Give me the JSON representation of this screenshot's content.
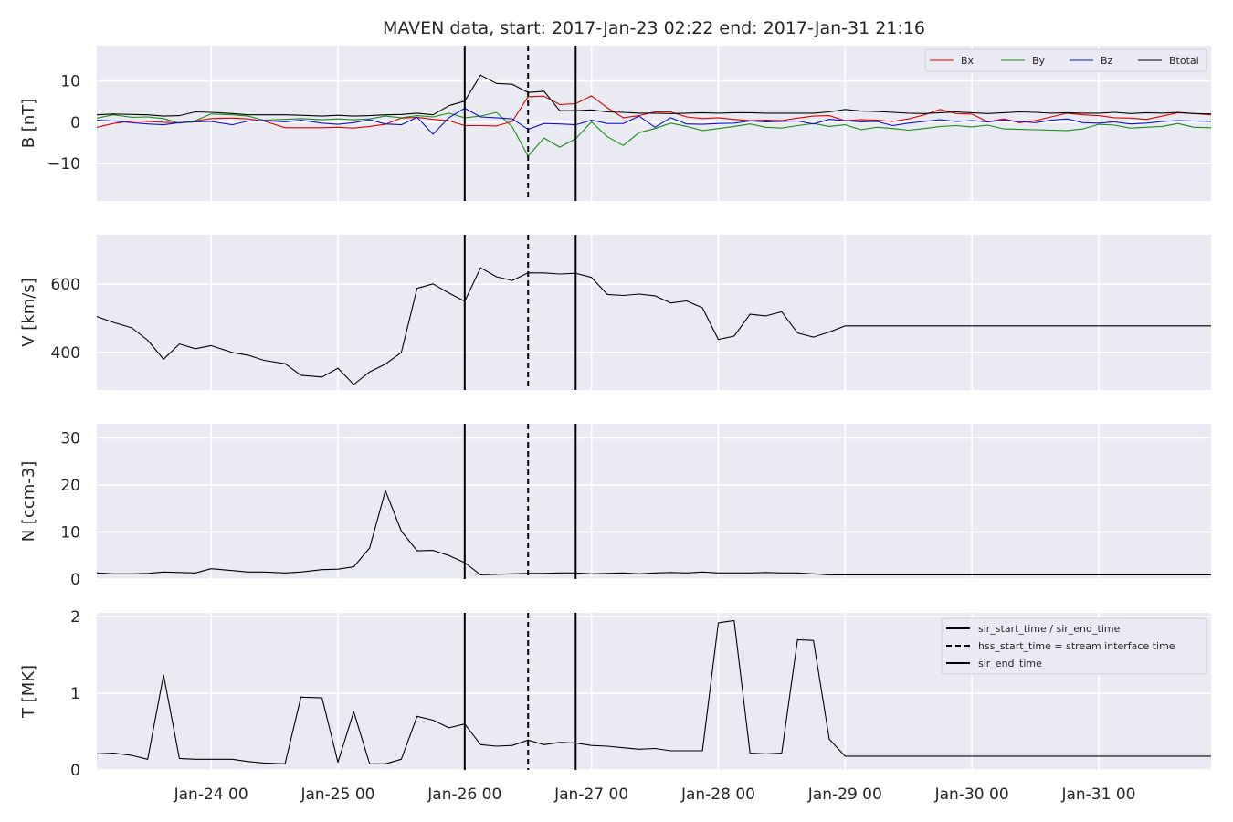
{
  "figure": {
    "title": "MAVEN data, start: 2017-Jan-23 02:22  end: 2017-Jan-31 21:16",
    "x_tick_labels": [
      "Jan-24 00",
      "Jan-25 00",
      "Jan-26 00",
      "Jan-27 00",
      "Jan-28 00",
      "Jan-29 00",
      "Jan-30 00",
      "Jan-31 00"
    ],
    "x_tick_dates": [
      "2017-01-24 00:00",
      "2017-01-25 00:00",
      "2017-01-26 00:00",
      "2017-01-27 00:00",
      "2017-01-28 00:00",
      "2017-01-29 00:00",
      "2017-01-30 00:00",
      "2017-01-31 00:00"
    ],
    "xlim": [
      "2017-01-23 02:22",
      "2017-01-31 21:16"
    ],
    "background": "#eaeaf2",
    "grid_color": "#ffffff"
  },
  "chart_data": {
    "type": "line",
    "x": [
      "2017-01-23 02:22",
      "2017-01-23 05:30",
      "2017-01-23 09:00",
      "2017-01-23 12:00",
      "2017-01-23 15:00",
      "2017-01-23 18:00",
      "2017-01-23 21:00",
      "2017-01-24 00:00",
      "2017-01-24 04:00",
      "2017-01-24 07:00",
      "2017-01-24 10:00",
      "2017-01-24 14:00",
      "2017-01-24 17:00",
      "2017-01-24 21:00",
      "2017-01-25 00:00",
      "2017-01-25 03:00",
      "2017-01-25 06:00",
      "2017-01-25 09:00",
      "2017-01-25 12:00",
      "2017-01-25 15:00",
      "2017-01-25 18:00",
      "2017-01-25 21:00",
      "2017-01-26 00:00",
      "2017-01-26 03:00",
      "2017-01-26 06:00",
      "2017-01-26 09:00",
      "2017-01-26 12:00",
      "2017-01-26 15:00",
      "2017-01-26 18:00",
      "2017-01-26 21:00",
      "2017-01-27 00:00",
      "2017-01-27 03:00",
      "2017-01-27 06:00",
      "2017-01-27 09:00",
      "2017-01-27 12:00",
      "2017-01-27 15:00",
      "2017-01-27 18:00",
      "2017-01-27 21:00",
      "2017-01-28 00:00",
      "2017-01-28 03:00",
      "2017-01-28 06:00",
      "2017-01-28 09:00",
      "2017-01-28 12:00",
      "2017-01-28 15:00",
      "2017-01-28 18:00",
      "2017-01-28 21:00",
      "2017-01-29 00:00",
      "2017-01-29 03:00",
      "2017-01-29 06:00",
      "2017-01-29 09:00",
      "2017-01-29 12:00",
      "2017-01-29 15:00",
      "2017-01-29 18:00",
      "2017-01-29 21:00",
      "2017-01-30 00:00",
      "2017-01-30 03:00",
      "2017-01-30 06:00",
      "2017-01-30 09:00",
      "2017-01-30 12:00",
      "2017-01-30 15:00",
      "2017-01-30 18:00",
      "2017-01-30 21:00",
      "2017-01-31 00:00",
      "2017-01-31 03:00",
      "2017-01-31 06:00",
      "2017-01-31 09:00",
      "2017-01-31 12:00",
      "2017-01-31 15:00",
      "2017-01-31 18:00",
      "2017-01-31 21:16"
    ],
    "panels": [
      {
        "ylabel": "B [nT]",
        "ylim": [
          -19,
          18.5
        ],
        "yticks": [
          -10,
          0,
          10
        ],
        "ytick_labels": [
          "−10",
          "0",
          "10"
        ],
        "legend_position": "top-right",
        "series": [
          {
            "name": "Bx",
            "color": "#e00000",
            "values": [
              -1.2,
              -0.3,
              0.3,
              0.2,
              0,
              -0.1,
              0.3,
              0.9,
              1,
              0.8,
              0.3,
              -1.3,
              -1.3,
              -1.3,
              -1.2,
              -1.4,
              -1,
              -0.5,
              1,
              1.2,
              0.7,
              0.4,
              -0.8,
              -0.8,
              -0.9,
              0.2,
              6.2,
              6.3,
              4.3,
              4.5,
              6.4,
              3.5,
              1.1,
              1.6,
              2.5,
              2.5,
              1.3,
              0.9,
              1.1,
              0.7,
              0.4,
              0.5,
              0.4,
              1,
              1.5,
              1.6,
              0.4,
              0.6,
              0.5,
              0.2,
              0.8,
              1.8,
              3.1,
              2.1,
              2,
              0.1,
              0.8,
              -0.1,
              0.4,
              1.3,
              2.2,
              1.8,
              1.6,
              1.1,
              1,
              0.7,
              1.5,
              2.3,
              2.1,
              1.8
            ]
          },
          {
            "name": "By",
            "color": "#1a8c1a",
            "values": [
              1,
              1.8,
              1.2,
              1.3,
              0.9,
              -0.2,
              0.4,
              2,
              1.8,
              1.5,
              0.5,
              0.7,
              0.9,
              0.6,
              0.8,
              0.6,
              0.8,
              1.5,
              1.1,
              1.6,
              1.3,
              2.2,
              1.1,
              1.5,
              2.4,
              -1.1,
              -8.2,
              -3.8,
              -6,
              -4,
              0.1,
              -3.5,
              -5.6,
              -2.5,
              -1.5,
              -0.2,
              -1,
              -2,
              -1.5,
              -1,
              -0.4,
              -1.2,
              -1.4,
              -0.8,
              -0.3,
              -1,
              -0.6,
              -1.8,
              -1.2,
              -1.5,
              -1.9,
              -1.5,
              -1,
              -0.8,
              -1.1,
              -0.7,
              -1.6,
              -1.7,
              -1.8,
              -1.9,
              -2,
              -1.6,
              -0.5,
              -0.7,
              -1.4,
              -1.2,
              -1,
              -0.3,
              -1.2,
              -1.3
            ]
          },
          {
            "name": "Bz",
            "color": "#1010d0",
            "values": [
              0.5,
              0.3,
              -0.1,
              -0.4,
              -0.6,
              -0.1,
              0.1,
              0.2,
              -0.6,
              0.3,
              0.4,
              0.1,
              0.5,
              -0.2,
              -0.5,
              -0.1,
              0.6,
              -0.4,
              -0.6,
              1.2,
              -2.9,
              1.1,
              3.4,
              1.3,
              1.1,
              0.8,
              -1.7,
              -0.3,
              -0.4,
              -0.6,
              0.5,
              -0.3,
              -0.3,
              1.5,
              -1.2,
              1.1,
              -0.4,
              -0.5,
              -0.3,
              -0.2,
              0.3,
              0.1,
              0.2,
              0.3,
              -0.4,
              0.7,
              0.4,
              0.1,
              0.2,
              -0.8,
              -0.2,
              0.2,
              0.6,
              0.2,
              0.4,
              0.1,
              0.5,
              0.2,
              -0.1,
              0.5,
              0.8,
              -0.1,
              -0.2,
              0.1,
              -0.4,
              -0.2,
              0.2,
              0.4,
              0.3,
              0.2
            ]
          },
          {
            "name": "Btotal",
            "color": "#000000",
            "values": [
              1.8,
              2,
              1.9,
              1.8,
              1.5,
              1.6,
              2.5,
              2.4,
              2.1,
              1.8,
              1.8,
              1.8,
              1.7,
              1.5,
              1.7,
              1.5,
              1.6,
              1.8,
              1.9,
              2.2,
              1.8,
              4,
              5.1,
              11.4,
              9.4,
              9.2,
              7.2,
              7.5,
              2.8,
              2.8,
              3,
              2.5,
              2.4,
              2.2,
              2.2,
              2.1,
              2.2,
              2.3,
              2.2,
              2.3,
              2.3,
              2.2,
              2.2,
              2.2,
              2.2,
              2.5,
              3.1,
              2.7,
              2.6,
              2.4,
              2.2,
              2.1,
              2.3,
              2.5,
              2.3,
              2.1,
              2.3,
              2.5,
              2.4,
              2.2,
              2.3,
              2.2,
              2.2,
              2.4,
              2.1,
              2.3,
              2.2,
              2.4,
              2.1,
              2
            ]
          }
        ]
      },
      {
        "ylabel": "V [km/s]",
        "ylim": [
          290,
          745
        ],
        "yticks": [
          400,
          600
        ],
        "ytick_labels": [
          "400",
          "600"
        ],
        "series": [
          {
            "name": "",
            "color": "#000000",
            "values": [
              505,
              488,
              472,
              436,
              380,
              425,
              411,
              420,
              400,
              392,
              377,
              367,
              333,
              328,
              354,
              306,
              343,
              366,
              400,
              588,
              601,
              574,
              550,
              648,
              622,
              611,
              633,
              633,
              630,
              632,
              620,
              570,
              567,
              571,
              566,
              545,
              551,
              531,
              438,
              448,
              512,
              507,
              519,
              457,
              445,
              460,
              478,
              478,
              478,
              478,
              478,
              478,
              478,
              478,
              478,
              478,
              478,
              478,
              478,
              478,
              478,
              478,
              478,
              478,
              478,
              478,
              478,
              478,
              478,
              478
            ]
          }
        ]
      },
      {
        "ylabel": "N [ccm-3]",
        "ylim": [
          0,
          33
        ],
        "yticks": [
          0,
          10,
          20,
          30
        ],
        "ytick_labels": [
          "0",
          "10",
          "20",
          "30"
        ],
        "series": [
          {
            "name": "",
            "color": "#000000",
            "values": [
              1.3,
              1.1,
              1.1,
              1.2,
              1.5,
              1.4,
              1.3,
              2.2,
              1.8,
              1.5,
              1.5,
              1.3,
              1.5,
              2,
              2.1,
              2.6,
              6.6,
              18.8,
              10.2,
              6,
              6.1,
              5,
              3.5,
              0.9,
              1,
              1.1,
              1.2,
              1.2,
              1.3,
              1.3,
              1.1,
              1.2,
              1.3,
              1.1,
              1.3,
              1.4,
              1.3,
              1.5,
              1.3,
              1.3,
              1.3,
              1.4,
              1.3,
              1.3,
              1.1,
              0.9,
              0.9,
              0.9,
              0.9,
              0.9,
              0.9,
              0.9,
              0.9,
              0.9,
              0.9,
              0.9,
              0.9,
              0.9,
              0.9,
              0.9,
              0.9,
              0.9,
              0.9,
              0.9,
              0.9,
              0.9,
              0.9,
              0.9,
              0.9,
              0.9
            ]
          }
        ]
      },
      {
        "ylabel": "T [MK]",
        "ylim": [
          0,
          2.05
        ],
        "yticks": [
          0,
          1,
          2
        ],
        "ytick_labels": [
          "0",
          "1",
          "2"
        ],
        "legend_position": "top-right",
        "series": [
          {
            "name": "",
            "color": "#000000",
            "values": [
              0.21,
              0.22,
              0.19,
              0.14,
              1.24,
              0.15,
              0.14,
              0.14,
              0.14,
              0.11,
              0.09,
              0.08,
              0.95,
              0.94,
              0.1,
              0.76,
              0.08,
              0.08,
              0.14,
              0.7,
              0.65,
              0.55,
              0.6,
              0.33,
              0.31,
              0.32,
              0.39,
              0.33,
              0.36,
              0.35,
              0.32,
              0.31,
              0.29,
              0.27,
              0.28,
              0.25,
              0.25,
              0.25,
              1.92,
              1.95,
              0.22,
              0.21,
              0.22,
              1.7,
              1.69,
              0.4,
              0.18,
              0.18,
              0.18,
              0.18,
              0.18,
              0.18,
              0.18,
              0.18,
              0.18,
              0.18,
              0.18,
              0.18,
              0.18,
              0.18,
              0.18,
              0.18,
              0.18,
              0.18,
              0.18,
              0.18,
              0.18,
              0.18,
              0.18,
              0.18
            ]
          }
        ]
      }
    ],
    "events": [
      {
        "label": "sir_start_time / sir_end_time",
        "time": "2017-01-26 00:00",
        "style": "solid"
      },
      {
        "label": "hss_start_time = stream interface time",
        "time": "2017-01-26 12:00",
        "style": "dashed"
      },
      {
        "label": "sir_end_time",
        "time": "2017-01-26 21:00",
        "style": "solid"
      }
    ]
  }
}
